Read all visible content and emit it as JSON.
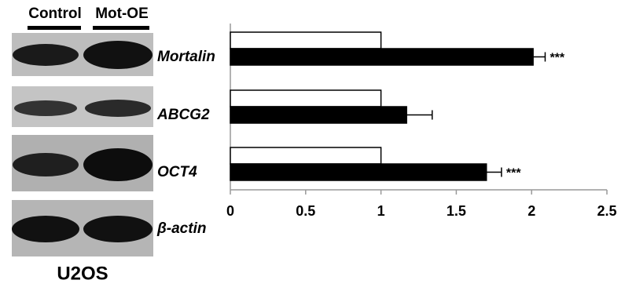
{
  "chart_data": {
    "type": "bar",
    "orientation": "horizontal",
    "categories": [
      "Mortalin",
      "ABCG2",
      "OCT4"
    ],
    "series": [
      {
        "name": "Control",
        "color": "#ffffff",
        "values": [
          1,
          1,
          1
        ]
      },
      {
        "name": "Mot-OE",
        "color": "#000000",
        "values": [
          2.01,
          1.17,
          1.7
        ],
        "errors": [
          0.08,
          0.17,
          0.1
        ],
        "significance": [
          "***",
          null,
          "***"
        ]
      }
    ],
    "xlim": [
      0,
      2.5
    ],
    "xticks": [
      0,
      0.5,
      1,
      1.5,
      2,
      2.5
    ],
    "grid": false
  },
  "blot": {
    "loading_control": "β-actin",
    "cell_line": "U2OS"
  }
}
